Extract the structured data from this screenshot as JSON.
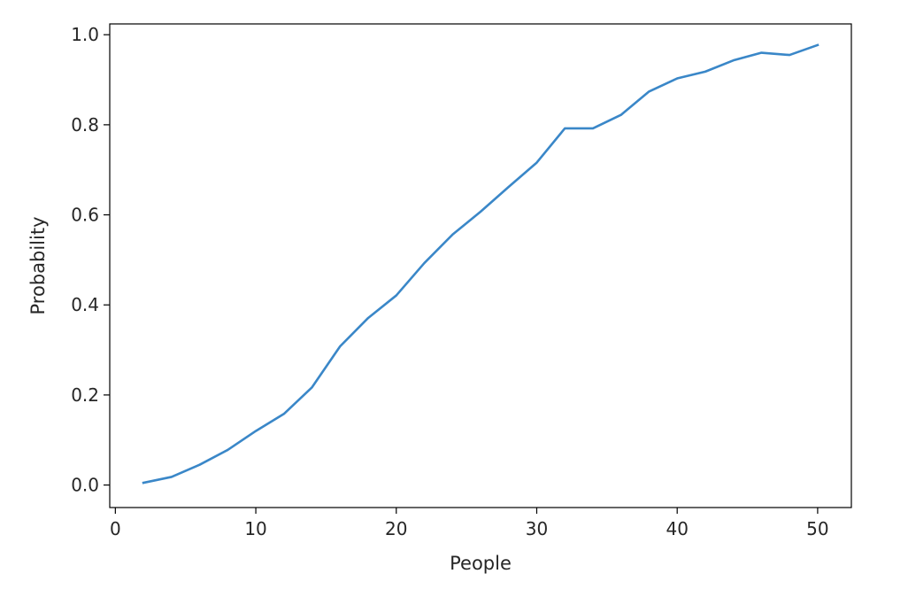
{
  "chart_data": {
    "type": "line",
    "title": "",
    "xlabel": "People",
    "ylabel": "Probability",
    "xlim": [
      -0.4,
      52.4
    ],
    "ylim": [
      -0.05,
      1.024
    ],
    "xticks": [
      0,
      10,
      20,
      30,
      40,
      50
    ],
    "xtick_labels": [
      "0",
      "10",
      "20",
      "30",
      "40",
      "50"
    ],
    "yticks": [
      0.0,
      0.2,
      0.4,
      0.6,
      0.8,
      1.0
    ],
    "ytick_labels": [
      "0.0",
      "0.2",
      "0.4",
      "0.6",
      "0.8",
      "1.0"
    ],
    "grid": false,
    "series": [
      {
        "color": "#3a87c8",
        "x": [
          2,
          4,
          6,
          8,
          10,
          12,
          14,
          16,
          18,
          20,
          22,
          24,
          26,
          28,
          30,
          32,
          34,
          36,
          38,
          40,
          42,
          44,
          46,
          48,
          50
        ],
        "y": [
          0.005,
          0.018,
          0.045,
          0.078,
          0.12,
          0.158,
          0.217,
          0.308,
          0.371,
          0.421,
          0.493,
          0.556,
          0.607,
          0.662,
          0.716,
          0.792,
          0.792,
          0.822,
          0.874,
          0.903,
          0.918,
          0.943,
          0.96,
          0.955,
          0.977
        ]
      }
    ]
  }
}
